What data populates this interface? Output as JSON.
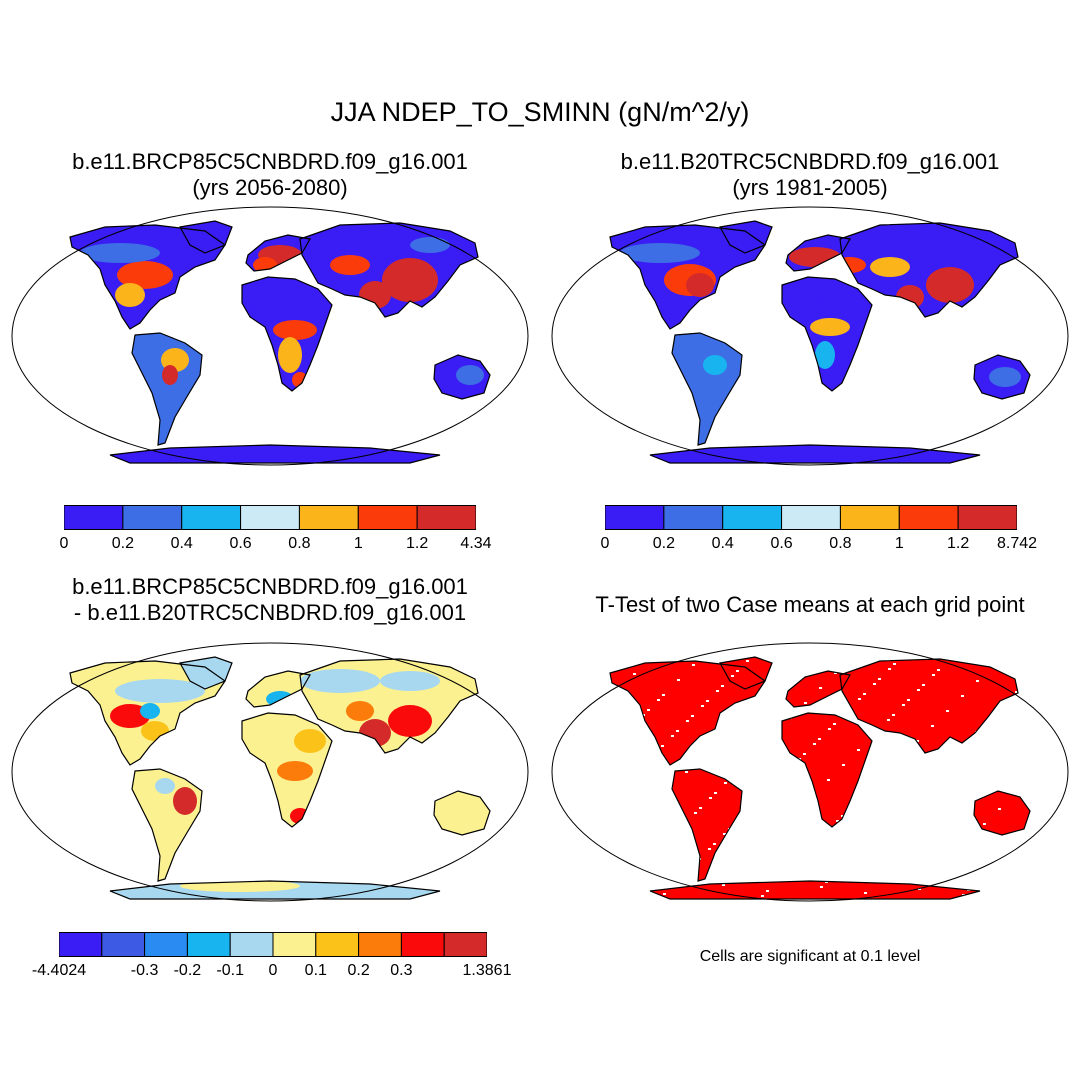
{
  "main_title": "JJA NDEP_TO_SMINN (gN/m^2/y)",
  "panels": [
    {
      "id": "future",
      "title_line1": "b.e11.BRCP85C5CNBDRD.f09_g16.001",
      "title_line2": "(yrs 2056-2080)",
      "palette": [
        "#3a1cf5",
        "#3d6ee5",
        "#18b4f0",
        "#cce9f6",
        "#fbb41a",
        "#fb3c0a",
        "#d52a2a"
      ],
      "colorbar_labels": [
        "0",
        "0.2",
        "0.4",
        "0.6",
        "0.8",
        "1",
        "1.2",
        "4.34"
      ]
    },
    {
      "id": "present",
      "title_line1": "b.e11.B20TRC5CNBDRD.f09_g16.001",
      "title_line2": "(yrs 1981-2005)",
      "palette": [
        "#3a1cf5",
        "#3d6ee5",
        "#18b4f0",
        "#cce9f6",
        "#fbb41a",
        "#fb3c0a",
        "#d52a2a"
      ],
      "colorbar_labels": [
        "0",
        "0.2",
        "0.4",
        "0.6",
        "0.8",
        "1",
        "1.2",
        "8.742"
      ]
    },
    {
      "id": "difference",
      "title_line1": "b.e11.BRCP85C5CNBDRD.f09_g16.001",
      "title_line2": "- b.e11.B20TRC5CNBDRD.f09_g16.001",
      "palette": [
        "#3a1cf5",
        "#3d5ae5",
        "#2a8cf2",
        "#18b4f0",
        "#a8d8f0",
        "#fbf190",
        "#fbc21a",
        "#fb7c0a",
        "#fa0a0a",
        "#d52a2a"
      ],
      "colorbar_labels": [
        "-4.4024",
        "-0.3",
        "-0.2",
        "-0.1",
        "0",
        "0.1",
        "0.2",
        "0.3",
        "1.3861"
      ]
    },
    {
      "id": "ttest",
      "title_line1": "T-Test of two Case means at each grid point",
      "note": "Cells are significant at 0.1 level",
      "fill_color": "#ff0000"
    }
  ]
}
